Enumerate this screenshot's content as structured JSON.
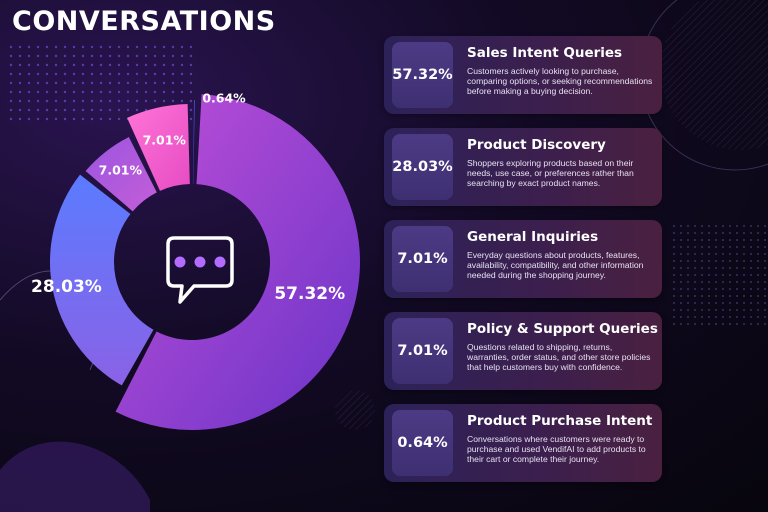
{
  "title": "CONVERSATIONS",
  "center_icon": "chat-bubble-icon",
  "colors": {
    "sales_intent": "#9d4edd",
    "product_discovery": "#5b7cff",
    "general_inquiries": "#b45ad8",
    "policy_support": "#ff6ad2",
    "purchase_intent": "#4338ca",
    "background": "#0d0818",
    "card": "#33204f"
  },
  "chart_data": {
    "type": "pie",
    "title": "",
    "categories": [
      "Sales Intent Queries",
      "Product Discovery",
      "General Inquiries",
      "Policy & Support Queries",
      "Product Purchase Intent"
    ],
    "values": [
      57.32,
      28.03,
      7.01,
      7.01,
      0.64
    ],
    "labels": [
      "57.32%",
      "28.03%",
      "7.01%",
      "7.01%",
      "0.64%"
    ]
  },
  "cards": [
    {
      "pct": "57.32%",
      "title": "Sales Intent Queries",
      "desc": "Customers actively looking to purchase, comparing options, or seeking recommendations before making a buying decision."
    },
    {
      "pct": "28.03%",
      "title": "Product Discovery",
      "desc": "Shoppers exploring products based on their needs, use case, or preferences rather than searching by exact product names."
    },
    {
      "pct": "7.01%",
      "title": "General Inquiries",
      "desc": "Everyday questions about products, features, availability, compatibility, and other information needed during the shopping journey."
    },
    {
      "pct": "7.01%",
      "title": "Policy & Support Queries",
      "desc": "Questions related to shipping, returns, warranties, order status, and other store policies that help customers buy with confidence."
    },
    {
      "pct": "0.64%",
      "title": "Product Purchase Intent",
      "desc": "Conversations where customers were ready to purchase and used VendifAI to add products to their cart or complete their journey."
    }
  ]
}
